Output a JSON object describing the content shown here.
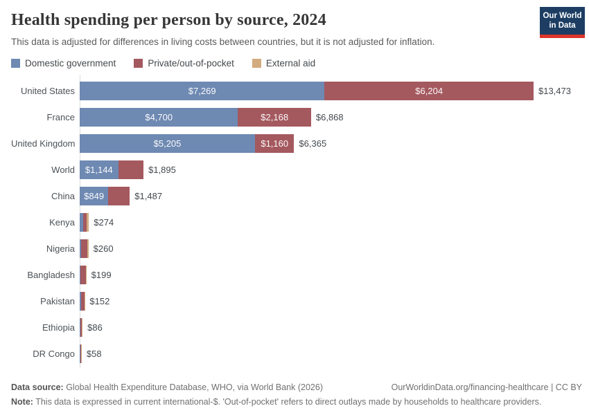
{
  "header": {
    "title": "Health spending per person by source, 2024",
    "subtitle": "This data is adjusted for differences in living costs between countries, but it is not adjusted for inflation."
  },
  "logo": {
    "line1": "Our World",
    "line2": "in Data",
    "bg_color": "#1d3d63",
    "accent_color": "#dc352a"
  },
  "legend": [
    {
      "label": "Domestic government",
      "color": "#6E89B2"
    },
    {
      "label": "Private/out-of-pocket",
      "color": "#A4595F"
    },
    {
      "label": "External aid",
      "color": "#D2AB7E"
    }
  ],
  "chart_data": {
    "type": "bar",
    "orientation": "horizontal",
    "stacked": true,
    "unit": "current international-$",
    "xlim": [
      0,
      13473
    ],
    "grid": false,
    "series_names": [
      "Domestic government",
      "Private/out-of-pocket",
      "External aid"
    ],
    "colors": [
      "#6E89B2",
      "#A4595F",
      "#D2AB7E"
    ],
    "rows": [
      {
        "category": "United States",
        "total": 13473,
        "total_label": "$13,473",
        "segments": [
          {
            "name": "Domestic government",
            "value": 7269,
            "label": "$7,269"
          },
          {
            "name": "Private/out-of-pocket",
            "value": 6204,
            "label": "$6,204"
          },
          {
            "name": "External aid",
            "value": 0,
            "label": ""
          }
        ]
      },
      {
        "category": "France",
        "total": 6868,
        "total_label": "$6,868",
        "segments": [
          {
            "name": "Domestic government",
            "value": 4700,
            "label": "$4,700"
          },
          {
            "name": "Private/out-of-pocket",
            "value": 2168,
            "label": "$2,168"
          },
          {
            "name": "External aid",
            "value": 0,
            "label": ""
          }
        ]
      },
      {
        "category": "United Kingdom",
        "total": 6365,
        "total_label": "$6,365",
        "segments": [
          {
            "name": "Domestic government",
            "value": 5205,
            "label": "$5,205"
          },
          {
            "name": "Private/out-of-pocket",
            "value": 1160,
            "label": "$1,160"
          },
          {
            "name": "External aid",
            "value": 0,
            "label": ""
          }
        ]
      },
      {
        "category": "World",
        "total": 1895,
        "total_label": "$1,895",
        "segments": [
          {
            "name": "Domestic government",
            "value": 1144,
            "label": "$1,144"
          },
          {
            "name": "Private/out-of-pocket",
            "value": 751,
            "label": ""
          },
          {
            "name": "External aid",
            "value": 0,
            "label": ""
          }
        ]
      },
      {
        "category": "China",
        "total": 1487,
        "total_label": "$1,487",
        "segments": [
          {
            "name": "Domestic government",
            "value": 849,
            "label": "$849"
          },
          {
            "name": "Private/out-of-pocket",
            "value": 638,
            "label": ""
          },
          {
            "name": "External aid",
            "value": 0,
            "label": ""
          }
        ]
      },
      {
        "category": "Kenya",
        "total": 274,
        "total_label": "$274",
        "segments": [
          {
            "name": "Domestic government",
            "value": 100,
            "label": ""
          },
          {
            "name": "Private/out-of-pocket",
            "value": 105,
            "label": ""
          },
          {
            "name": "External aid",
            "value": 69,
            "label": ""
          }
        ]
      },
      {
        "category": "Nigeria",
        "total": 260,
        "total_label": "$260",
        "segments": [
          {
            "name": "Domestic government",
            "value": 40,
            "label": ""
          },
          {
            "name": "Private/out-of-pocket",
            "value": 190,
            "label": ""
          },
          {
            "name": "External aid",
            "value": 30,
            "label": ""
          }
        ]
      },
      {
        "category": "Bangladesh",
        "total": 199,
        "total_label": "$199",
        "segments": [
          {
            "name": "Domestic government",
            "value": 25,
            "label": ""
          },
          {
            "name": "Private/out-of-pocket",
            "value": 160,
            "label": ""
          },
          {
            "name": "External aid",
            "value": 14,
            "label": ""
          }
        ]
      },
      {
        "category": "Pakistan",
        "total": 152,
        "total_label": "$152",
        "segments": [
          {
            "name": "Domestic government",
            "value": 40,
            "label": ""
          },
          {
            "name": "Private/out-of-pocket",
            "value": 100,
            "label": ""
          },
          {
            "name": "External aid",
            "value": 12,
            "label": ""
          }
        ]
      },
      {
        "category": "Ethiopia",
        "total": 86,
        "total_label": "$86",
        "segments": [
          {
            "name": "Domestic government",
            "value": 20,
            "label": ""
          },
          {
            "name": "Private/out-of-pocket",
            "value": 50,
            "label": ""
          },
          {
            "name": "External aid",
            "value": 16,
            "label": ""
          }
        ]
      },
      {
        "category": "DR Congo",
        "total": 58,
        "total_label": "$58",
        "segments": [
          {
            "name": "Domestic government",
            "value": 10,
            "label": ""
          },
          {
            "name": "Private/out-of-pocket",
            "value": 30,
            "label": ""
          },
          {
            "name": "External aid",
            "value": 18,
            "label": ""
          }
        ]
      }
    ]
  },
  "footer": {
    "datasource_label": "Data source:",
    "datasource_text": " Global Health Expenditure Database, WHO, via World Bank (2026)",
    "link": "OurWorldinData.org/financing-healthcare | CC BY",
    "note_label": "Note:",
    "note_text": " This data is expressed in current international-$. 'Out-of-pocket' refers to direct outlays made by households to healthcare providers."
  }
}
